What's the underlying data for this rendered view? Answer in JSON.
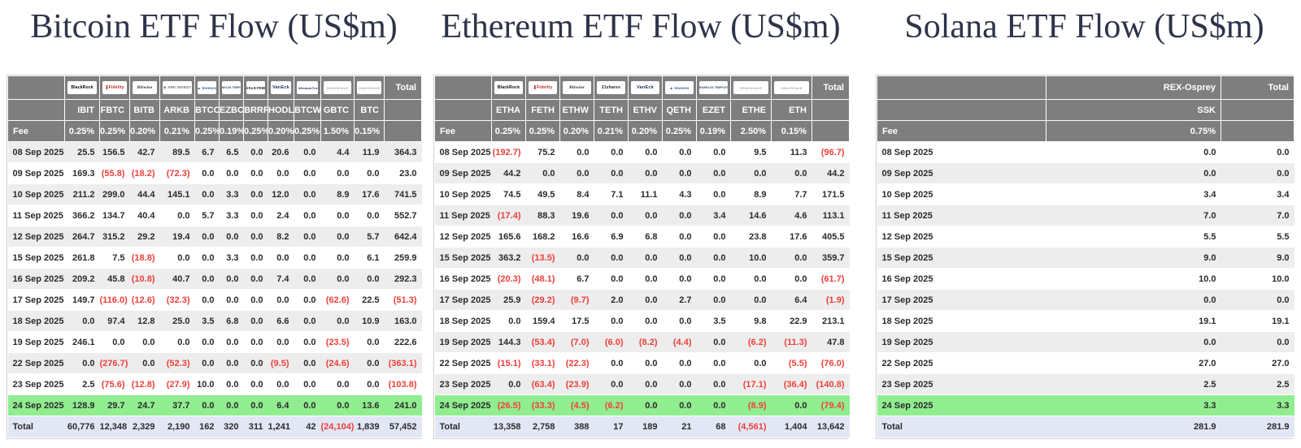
{
  "colors": {
    "header_bg": "#7e7e7e",
    "header_text": "#ffffff",
    "negative_red": "#ee403b",
    "highlight_green": "#90ee90",
    "total_row_bg": "#e2e7f5",
    "alt_row_bg": "#ededed",
    "title_color": "#2e3349"
  },
  "tables": [
    {
      "name": "bitcoin",
      "title": "Bitcoin ETF Flow (US$m)",
      "fee_row_label": "Fee",
      "total_column_label": "Total",
      "first_row_shaded": true,
      "providers": [
        {
          "name": "BlackRock"
        },
        {
          "name": "Fidelity"
        },
        {
          "name": "Bitwise"
        },
        {
          "name": "ARK Invest"
        },
        {
          "name": "Invesco"
        },
        {
          "name": "Franklin Templeton"
        },
        {
          "name": "Valkyrie"
        },
        {
          "name": "VanEck"
        },
        {
          "name": "WisdomTree"
        },
        {
          "name": "Grayscale"
        },
        {
          "name": "Grayscale"
        }
      ],
      "tickers": [
        "IBIT",
        "FBTC",
        "BITB",
        "ARKB",
        "BTCO",
        "EZBC",
        "BRRR",
        "HODL",
        "BTCW",
        "GBTC",
        "BTC"
      ],
      "fees": [
        "0.25%",
        "0.25%",
        "0.20%",
        "0.21%",
        "0.25%",
        "0.19%",
        "0.25%",
        "0.20%",
        "0.25%",
        "1.50%",
        "0.15%"
      ],
      "rows": [
        {
          "date": "08 Sep 2025",
          "values": [
            "25.5",
            "156.5",
            "42.7",
            "89.5",
            "6.7",
            "6.5",
            "0.0",
            "20.6",
            "0.0",
            "4.4",
            "11.9"
          ],
          "total": "364.3",
          "highlight": false
        },
        {
          "date": "09 Sep 2025",
          "values": [
            "169.3",
            "(55.8)",
            "(18.2)",
            "(72.3)",
            "0.0",
            "0.0",
            "0.0",
            "0.0",
            "0.0",
            "0.0",
            "0.0"
          ],
          "total": "23.0",
          "highlight": false
        },
        {
          "date": "10 Sep 2025",
          "values": [
            "211.2",
            "299.0",
            "44.4",
            "145.1",
            "0.0",
            "3.3",
            "0.0",
            "12.0",
            "0.0",
            "8.9",
            "17.6"
          ],
          "total": "741.5",
          "highlight": false
        },
        {
          "date": "11 Sep 2025",
          "values": [
            "366.2",
            "134.7",
            "40.4",
            "0.0",
            "5.7",
            "3.3",
            "0.0",
            "2.4",
            "0.0",
            "0.0",
            "0.0"
          ],
          "total": "552.7",
          "highlight": false
        },
        {
          "date": "12 Sep 2025",
          "values": [
            "264.7",
            "315.2",
            "29.2",
            "19.4",
            "0.0",
            "0.0",
            "0.0",
            "8.2",
            "0.0",
            "0.0",
            "5.7"
          ],
          "total": "642.4",
          "highlight": false
        },
        {
          "date": "15 Sep 2025",
          "values": [
            "261.8",
            "7.5",
            "(18.8)",
            "0.0",
            "0.0",
            "3.3",
            "0.0",
            "0.0",
            "0.0",
            "0.0",
            "6.1"
          ],
          "total": "259.9",
          "highlight": false
        },
        {
          "date": "16 Sep 2025",
          "values": [
            "209.2",
            "45.8",
            "(10.8)",
            "40.7",
            "0.0",
            "0.0",
            "0.0",
            "7.4",
            "0.0",
            "0.0",
            "0.0"
          ],
          "total": "292.3",
          "highlight": false
        },
        {
          "date": "17 Sep 2025",
          "values": [
            "149.7",
            "(116.0)",
            "(12.6)",
            "(32.3)",
            "0.0",
            "0.0",
            "0.0",
            "0.0",
            "0.0",
            "(62.6)",
            "22.5"
          ],
          "total": "(51.3)",
          "highlight": false
        },
        {
          "date": "18 Sep 2025",
          "values": [
            "0.0",
            "97.4",
            "12.8",
            "25.0",
            "3.5",
            "6.8",
            "0.0",
            "6.6",
            "0.0",
            "0.0",
            "10.9"
          ],
          "total": "163.0",
          "highlight": false
        },
        {
          "date": "19 Sep 2025",
          "values": [
            "246.1",
            "0.0",
            "0.0",
            "0.0",
            "0.0",
            "0.0",
            "0.0",
            "0.0",
            "0.0",
            "(23.5)",
            "0.0"
          ],
          "total": "222.6",
          "highlight": false
        },
        {
          "date": "22 Sep 2025",
          "values": [
            "0.0",
            "(276.7)",
            "0.0",
            "(52.3)",
            "0.0",
            "0.0",
            "0.0",
            "(9.5)",
            "0.0",
            "(24.6)",
            "0.0"
          ],
          "total": "(363.1)",
          "highlight": false
        },
        {
          "date": "23 Sep 2025",
          "values": [
            "2.5",
            "(75.6)",
            "(12.8)",
            "(27.9)",
            "10.0",
            "0.0",
            "0.0",
            "0.0",
            "0.0",
            "0.0",
            "0.0"
          ],
          "total": "(103.8)",
          "highlight": false
        },
        {
          "date": "24 Sep 2025",
          "values": [
            "128.9",
            "29.7",
            "24.7",
            "37.7",
            "0.0",
            "0.0",
            "0.0",
            "6.4",
            "0.0",
            "0.0",
            "13.6"
          ],
          "total": "241.0",
          "highlight": true
        }
      ],
      "total_row": {
        "label": "Total",
        "values": [
          "60,776",
          "12,348",
          "2,329",
          "2,190",
          "162",
          "320",
          "311",
          "1,241",
          "42",
          "(24,104)",
          "1,839"
        ],
        "total": "57,452"
      }
    },
    {
      "name": "ethereum",
      "title": "Ethereum ETF Flow (US$m)",
      "fee_row_label": "Fee",
      "total_column_label": "Total",
      "first_row_shaded": false,
      "providers": [
        {
          "name": "BlackRock"
        },
        {
          "name": "Fidelity"
        },
        {
          "name": "Bitwise"
        },
        {
          "name": "21shares"
        },
        {
          "name": "VanEck"
        },
        {
          "name": "Invesco"
        },
        {
          "name": "Franklin Templeton"
        },
        {
          "name": "Grayscale"
        },
        {
          "name": "Grayscale"
        }
      ],
      "tickers": [
        "ETHA",
        "FETH",
        "ETHW",
        "TETH",
        "ETHV",
        "QETH",
        "EZET",
        "ETHE",
        "ETH"
      ],
      "fees": [
        "0.25%",
        "0.25%",
        "0.20%",
        "0.21%",
        "0.20%",
        "0.25%",
        "0.19%",
        "2.50%",
        "0.15%"
      ],
      "rows": [
        {
          "date": "08 Sep 2025",
          "values": [
            "(192.7)",
            "75.2",
            "0.0",
            "0.0",
            "0.0",
            "0.0",
            "0.0",
            "9.5",
            "11.3"
          ],
          "total": "(96.7)",
          "highlight": false
        },
        {
          "date": "09 Sep 2025",
          "values": [
            "44.2",
            "0.0",
            "0.0",
            "0.0",
            "0.0",
            "0.0",
            "0.0",
            "0.0",
            "0.0"
          ],
          "total": "44.2",
          "highlight": false
        },
        {
          "date": "10 Sep 2025",
          "values": [
            "74.5",
            "49.5",
            "8.4",
            "7.1",
            "11.1",
            "4.3",
            "0.0",
            "8.9",
            "7.7"
          ],
          "total": "171.5",
          "highlight": false
        },
        {
          "date": "11 Sep 2025",
          "values": [
            "(17.4)",
            "88.3",
            "19.6",
            "0.0",
            "0.0",
            "0.0",
            "3.4",
            "14.6",
            "4.6"
          ],
          "total": "113.1",
          "highlight": false
        },
        {
          "date": "12 Sep 2025",
          "values": [
            "165.6",
            "168.2",
            "16.6",
            "6.9",
            "6.8",
            "0.0",
            "0.0",
            "23.8",
            "17.6"
          ],
          "total": "405.5",
          "highlight": false
        },
        {
          "date": "15 Sep 2025",
          "values": [
            "363.2",
            "(13.5)",
            "0.0",
            "0.0",
            "0.0",
            "0.0",
            "0.0",
            "10.0",
            "0.0"
          ],
          "total": "359.7",
          "highlight": false
        },
        {
          "date": "16 Sep 2025",
          "values": [
            "(20.3)",
            "(48.1)",
            "6.7",
            "0.0",
            "0.0",
            "0.0",
            "0.0",
            "0.0",
            "0.0"
          ],
          "total": "(61.7)",
          "highlight": false
        },
        {
          "date": "17 Sep 2025",
          "values": [
            "25.9",
            "(29.2)",
            "(9.7)",
            "2.0",
            "0.0",
            "2.7",
            "0.0",
            "0.0",
            "6.4"
          ],
          "total": "(1.9)",
          "highlight": false
        },
        {
          "date": "18 Sep 2025",
          "values": [
            "0.0",
            "159.4",
            "17.5",
            "0.0",
            "0.0",
            "0.0",
            "3.5",
            "9.8",
            "22.9"
          ],
          "total": "213.1",
          "highlight": false
        },
        {
          "date": "19 Sep 2025",
          "values": [
            "144.3",
            "(53.4)",
            "(7.0)",
            "(6.0)",
            "(8.2)",
            "(4.4)",
            "0.0",
            "(6.2)",
            "(11.3)"
          ],
          "total": "47.8",
          "highlight": false
        },
        {
          "date": "22 Sep 2025",
          "values": [
            "(15.1)",
            "(33.1)",
            "(22.3)",
            "0.0",
            "0.0",
            "0.0",
            "0.0",
            "0.0",
            "(5.5)"
          ],
          "total": "(76.0)",
          "highlight": false
        },
        {
          "date": "23 Sep 2025",
          "values": [
            "0.0",
            "(63.4)",
            "(23.9)",
            "0.0",
            "0.0",
            "0.0",
            "0.0",
            "(17.1)",
            "(36.4)"
          ],
          "total": "(140.8)",
          "highlight": false
        },
        {
          "date": "24 Sep 2025",
          "values": [
            "(26.5)",
            "(33.3)",
            "(4.5)",
            "(6.2)",
            "0.0",
            "0.0",
            "0.0",
            "(8.9)",
            "0.0"
          ],
          "total": "(79.4)",
          "highlight": true
        }
      ],
      "total_row": {
        "label": "Total",
        "values": [
          "13,358",
          "2,758",
          "388",
          "17",
          "189",
          "21",
          "68",
          "(4,561)",
          "1,404"
        ],
        "total": "13,642"
      }
    },
    {
      "name": "solana",
      "title": "Solana ETF Flow (US$m)",
      "fee_row_label": "Fee",
      "total_column_label": "Total",
      "first_row_shaded": false,
      "providers": [
        {
          "name": "REX-Osprey",
          "text_only": true
        }
      ],
      "tickers": [
        "SSK"
      ],
      "fees": [
        "0.75%"
      ],
      "rows": [
        {
          "date": "08 Sep 2025",
          "values": [
            "0.0"
          ],
          "total": "0.0",
          "highlight": false
        },
        {
          "date": "09 Sep 2025",
          "values": [
            "0.0"
          ],
          "total": "0.0",
          "highlight": false
        },
        {
          "date": "10 Sep 2025",
          "values": [
            "3.4"
          ],
          "total": "3.4",
          "highlight": false
        },
        {
          "date": "11 Sep 2025",
          "values": [
            "7.0"
          ],
          "total": "7.0",
          "highlight": false
        },
        {
          "date": "12 Sep 2025",
          "values": [
            "5.5"
          ],
          "total": "5.5",
          "highlight": false
        },
        {
          "date": "15 Sep 2025",
          "values": [
            "9.0"
          ],
          "total": "9.0",
          "highlight": false
        },
        {
          "date": "16 Sep 2025",
          "values": [
            "10.0"
          ],
          "total": "10.0",
          "highlight": false
        },
        {
          "date": "17 Sep 2025",
          "values": [
            "0.0"
          ],
          "total": "0.0",
          "highlight": false
        },
        {
          "date": "18 Sep 2025",
          "values": [
            "19.1"
          ],
          "total": "19.1",
          "highlight": false
        },
        {
          "date": "19 Sep 2025",
          "values": [
            "0.0"
          ],
          "total": "0.0",
          "highlight": false
        },
        {
          "date": "22 Sep 2025",
          "values": [
            "27.0"
          ],
          "total": "27.0",
          "highlight": false
        },
        {
          "date": "23 Sep 2025",
          "values": [
            "2.5"
          ],
          "total": "2.5",
          "highlight": false
        },
        {
          "date": "24 Sep 2025",
          "values": [
            "3.3"
          ],
          "total": "3.3",
          "highlight": true
        }
      ],
      "total_row": {
        "label": "Total",
        "values": [
          "281.9"
        ],
        "total": "281.9"
      }
    }
  ]
}
